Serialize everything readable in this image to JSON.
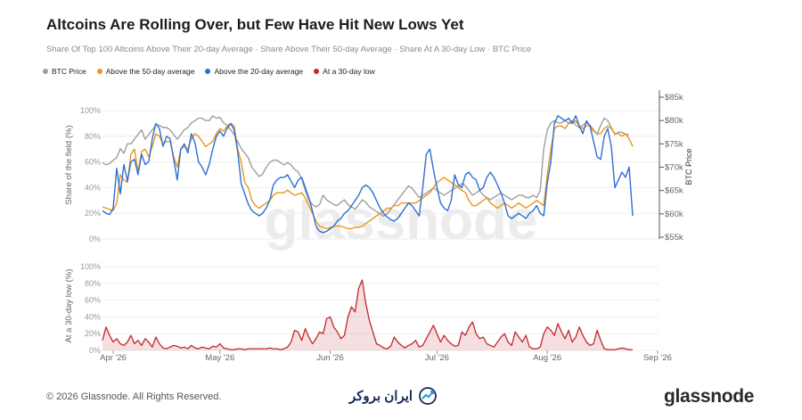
{
  "header": {
    "title": "Altcoins Are Rolling Over, but Few Have Hit New Lows Yet",
    "subtitle": "Share Of Top 100 Altcoins Above Their 20-day Average · Share Above Their 50-day Average · Share At A 30-day Low · BTC Price"
  },
  "legend": [
    {
      "label": "BTC Price",
      "color": "#9e9e9e"
    },
    {
      "label": "Above the 50-day average",
      "color": "#e8961e"
    },
    {
      "label": "Above the 20-day average",
      "color": "#2e6fd6"
    },
    {
      "label": "At a 30-day low",
      "color": "#c0282d"
    }
  ],
  "footer": {
    "copyright": "© 2026 Glassnode. All Rights Reserved.",
    "brand": "ایران بروکر",
    "logo": "glassnode",
    "watermark": "glassnode"
  },
  "chart_data": [
    {
      "type": "line",
      "ylabel": "Share of the field (%)",
      "ylabel_right": "BTC Price",
      "ylim": [
        0,
        100
      ],
      "ylim_right": [
        55000,
        85000
      ],
      "yticks": [
        "0%",
        "20%",
        "40%",
        "60%",
        "80%",
        "100%"
      ],
      "yticks_right": [
        "$55k",
        "$60k",
        "$65k",
        "$70k",
        "$75k",
        "$80k",
        "$85k"
      ],
      "grid": true,
      "legend_position": "top-left",
      "x_start": "2026-03-29",
      "series": [
        {
          "name": "Above the 20-day average",
          "color": "#2e6fd6",
          "axis": "left",
          "values": [
            22,
            20,
            19,
            24,
            55,
            35,
            58,
            45,
            60,
            62,
            50,
            66,
            58,
            60,
            78,
            90,
            86,
            72,
            80,
            78,
            62,
            46,
            70,
            74,
            67,
            82,
            75,
            60,
            56,
            50,
            58,
            70,
            80,
            84,
            80,
            86,
            90,
            85,
            68,
            43,
            35,
            27,
            22,
            20,
            18,
            20,
            24,
            30,
            42,
            46,
            48,
            48,
            50,
            45,
            40,
            46,
            48,
            40,
            32,
            22,
            10,
            6,
            5,
            6,
            8,
            10,
            14,
            16,
            20,
            22,
            26,
            30,
            34,
            40,
            42,
            40,
            36,
            30,
            24,
            20,
            17,
            15,
            14,
            16,
            20,
            24,
            28,
            26,
            22,
            18,
            40,
            66,
            70,
            54,
            40,
            28,
            24,
            22,
            30,
            50,
            42,
            40,
            50,
            52,
            48,
            46,
            38,
            40,
            48,
            52,
            48,
            42,
            36,
            28,
            18,
            16,
            18,
            20,
            18,
            16,
            20,
            22,
            26,
            20,
            18,
            44,
            60,
            90,
            96,
            94,
            92,
            94,
            90,
            96,
            88,
            82,
            92,
            88,
            76,
            64,
            62,
            80,
            86,
            72,
            40,
            46,
            52,
            48,
            56,
            18
          ]
        },
        {
          "name": "Above the 50-day average",
          "color": "#e8961e",
          "axis": "left",
          "values": [
            25,
            24,
            23,
            22,
            28,
            50,
            46,
            44,
            66,
            70,
            52,
            68,
            70,
            64,
            72,
            82,
            80,
            74,
            76,
            76,
            64,
            56,
            70,
            72,
            70,
            78,
            82,
            80,
            76,
            72,
            74,
            76,
            82,
            86,
            84,
            88,
            90,
            88,
            70,
            60,
            44,
            40,
            30,
            26,
            24,
            26,
            28,
            30,
            34,
            36,
            36,
            36,
            38,
            36,
            34,
            35,
            36,
            32,
            26,
            20,
            14,
            10,
            9,
            8,
            9,
            10,
            10,
            10,
            9,
            8,
            8,
            9,
            9,
            10,
            12,
            14,
            16,
            18,
            20,
            22,
            24,
            24,
            26,
            26,
            28,
            28,
            28,
            28,
            28,
            30,
            32,
            34,
            36,
            40,
            44,
            46,
            48,
            46,
            44,
            42,
            40,
            38,
            36,
            30,
            26,
            26,
            28,
            30,
            32,
            28,
            26,
            24,
            26,
            28,
            26,
            24,
            26,
            28,
            26,
            24,
            26,
            28,
            30,
            28,
            26,
            50,
            70,
            86,
            88,
            88,
            86,
            90,
            90,
            92,
            88,
            86,
            88,
            88,
            84,
            82,
            82,
            86,
            88,
            86,
            82,
            82,
            80,
            82,
            78,
            72
          ]
        },
        {
          "name": "BTC Price",
          "color": "#9e9e9e",
          "axis": "right",
          "values": [
            71,
            70.5,
            70.8,
            71.5,
            72,
            74,
            73,
            75,
            75,
            76,
            77,
            78,
            76,
            77,
            78,
            79,
            79,
            78.5,
            78.5,
            78,
            77,
            76,
            77,
            78,
            78.5,
            79.5,
            80,
            80.5,
            80.5,
            80,
            80,
            81,
            80.5,
            80.7,
            79.5,
            79,
            78,
            77,
            75.5,
            74,
            73,
            72,
            70,
            69,
            68,
            68.5,
            70,
            71,
            71.5,
            71.5,
            71,
            70.5,
            71,
            70.5,
            69.5,
            69,
            67.5,
            65,
            63,
            62,
            61.5,
            62,
            64,
            63,
            62.5,
            62,
            61.8,
            62.5,
            63,
            62,
            61.5,
            61,
            62,
            63,
            62.5,
            61.5,
            61,
            60.5,
            60,
            59.5,
            60,
            61,
            62,
            63,
            64,
            65,
            66,
            65.5,
            64.5,
            63.5,
            64,
            64.5,
            65,
            65.5,
            65,
            64.5,
            64,
            64.5,
            65,
            65.5,
            66,
            66.5,
            66,
            65,
            64,
            64.5,
            65,
            64,
            63.5,
            63,
            63.5,
            64,
            64.5,
            64,
            63.5,
            63,
            63.5,
            64,
            64,
            63.5,
            63.5,
            64,
            63.5,
            65,
            74,
            78,
            79.5,
            80,
            79.5,
            79.5,
            80,
            79.5,
            80,
            79,
            78.5,
            79,
            79.5,
            79,
            78,
            77,
            79,
            80.5,
            80,
            78.5,
            77,
            77.5,
            77.5,
            77,
            77
          ]
        },
        {
          "name": "At a 30-day low",
          "color": "#c0282d",
          "axis": "left",
          "panel": "bottom",
          "ylim": [
            0,
            100
          ],
          "yticks": [
            "0%",
            "20%",
            "40%",
            "60%",
            "80%",
            "100%"
          ],
          "ylabel": "At a 30-day low (%)",
          "values": [
            12,
            28,
            18,
            10,
            14,
            8,
            6,
            10,
            18,
            8,
            12,
            6,
            14,
            10,
            4,
            16,
            8,
            3,
            2,
            4,
            6,
            5,
            3,
            4,
            2,
            6,
            3,
            2,
            4,
            3,
            2,
            5,
            4,
            8,
            3,
            2,
            1,
            1,
            2,
            2,
            1,
            2,
            2,
            2,
            2,
            2,
            2,
            3,
            2,
            2,
            1,
            2,
            4,
            10,
            24,
            22,
            12,
            26,
            16,
            8,
            14,
            22,
            20,
            38,
            40,
            28,
            22,
            14,
            18,
            40,
            52,
            46,
            74,
            84,
            56,
            36,
            22,
            8,
            6,
            3,
            2,
            5,
            16,
            10,
            6,
            3,
            6,
            8,
            12,
            4,
            6,
            14,
            22,
            30,
            20,
            10,
            18,
            12,
            8,
            5,
            6,
            22,
            18,
            28,
            34,
            20,
            14,
            16,
            8,
            6,
            4,
            10,
            16,
            20,
            10,
            6,
            22,
            16,
            10,
            18,
            4,
            2,
            2,
            4,
            20,
            28,
            24,
            18,
            32,
            22,
            14,
            24,
            10,
            16,
            28,
            18,
            10,
            6,
            8,
            24,
            12,
            2,
            1,
            1,
            1,
            2,
            3,
            2,
            1,
            1
          ]
        }
      ],
      "x_tick_labels": [
        "Apr '26",
        "May '26",
        "Jun '26",
        "Jul '26",
        "Aug '26",
        "Sep '26"
      ],
      "x_tick_dates": [
        "2026-04-01",
        "2026-05-01",
        "2026-06-01",
        "2026-07-01",
        "2026-08-01",
        "2026-09-01"
      ]
    }
  ]
}
